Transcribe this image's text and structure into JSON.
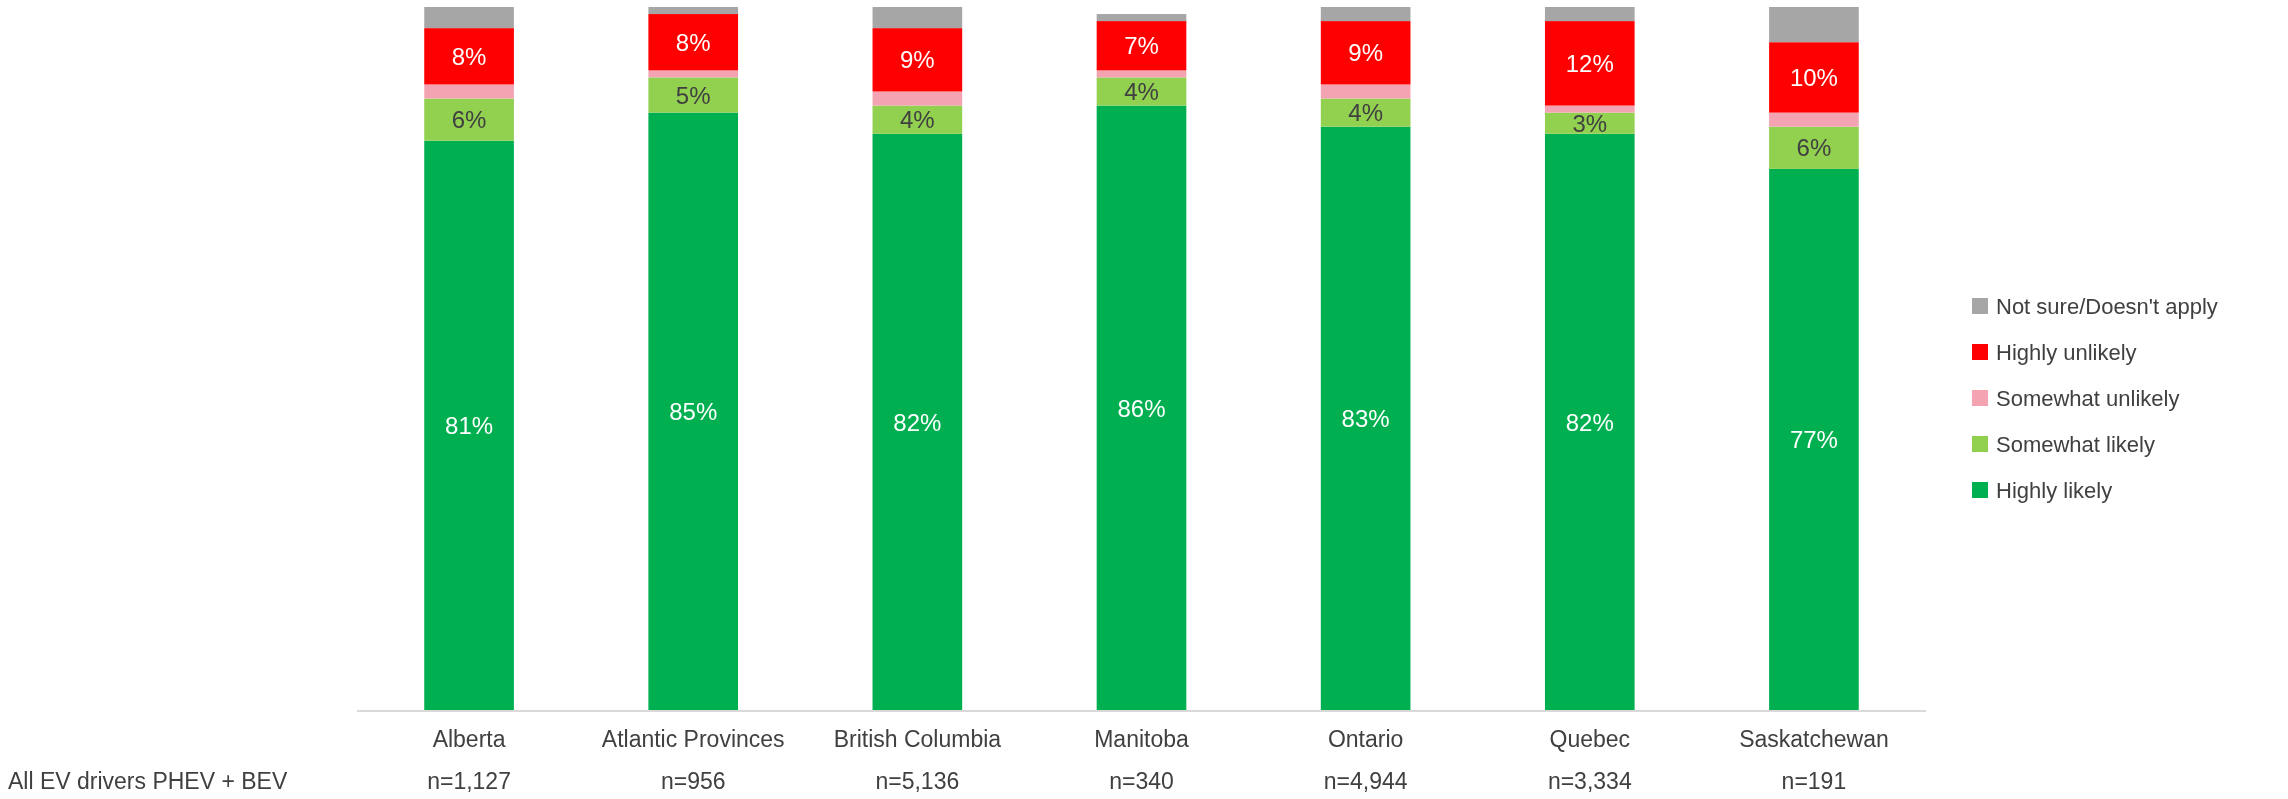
{
  "chart_data": {
    "type": "bar",
    "stacked": true,
    "legend": "right",
    "ylim": [
      0,
      100
    ],
    "tick_labels": "x",
    "categories": [
      "Alberta\nn=1,127",
      "Atlantic Provinces\nn=956",
      "British Columbia\nn=5,136",
      "Manitoba\nn=340",
      "Ontario\nn=4,944",
      "Quebec\nn=3,334",
      "Saskatchewan\nn=191"
    ],
    "annotations": [
      "All EV drivers PHEV + BEV"
    ],
    "series": [
      {
        "name": "Highly likely",
        "color": "#00b050",
        "values": [
          81,
          85,
          82,
          86,
          83,
          82,
          77
        ],
        "value_labels": [
          "81%",
          "85%",
          "82%",
          "86%",
          "83%",
          "82%",
          "77%"
        ]
      },
      {
        "name": "Somewhat likely",
        "color": "#92d050",
        "values": [
          6,
          5,
          4,
          4,
          4,
          3,
          6
        ],
        "value_labels": [
          "6%",
          "5%",
          "4%",
          "4%",
          "4%",
          "3%",
          "6%"
        ]
      },
      {
        "name": "Somewhat unlikely",
        "color": "#f4a3b3",
        "values": [
          2,
          1,
          2,
          1,
          2,
          1,
          2
        ],
        "value_labels": [
          null,
          null,
          null,
          null,
          null,
          null,
          null
        ]
      },
      {
        "name": "Highly unlikely",
        "color": "#ff0000",
        "values": [
          8,
          8,
          9,
          7,
          9,
          12,
          10
        ],
        "value_labels": [
          "8%",
          "8%",
          "9%",
          "7%",
          "9%",
          "12%",
          "10%"
        ]
      },
      {
        "name": "Not sure/Doesn't apply",
        "color": "#a6a6a6",
        "values": [
          3,
          1,
          3,
          1,
          2,
          2,
          5
        ],
        "value_labels": [
          null,
          null,
          null,
          null,
          null,
          null,
          null
        ]
      }
    ]
  }
}
